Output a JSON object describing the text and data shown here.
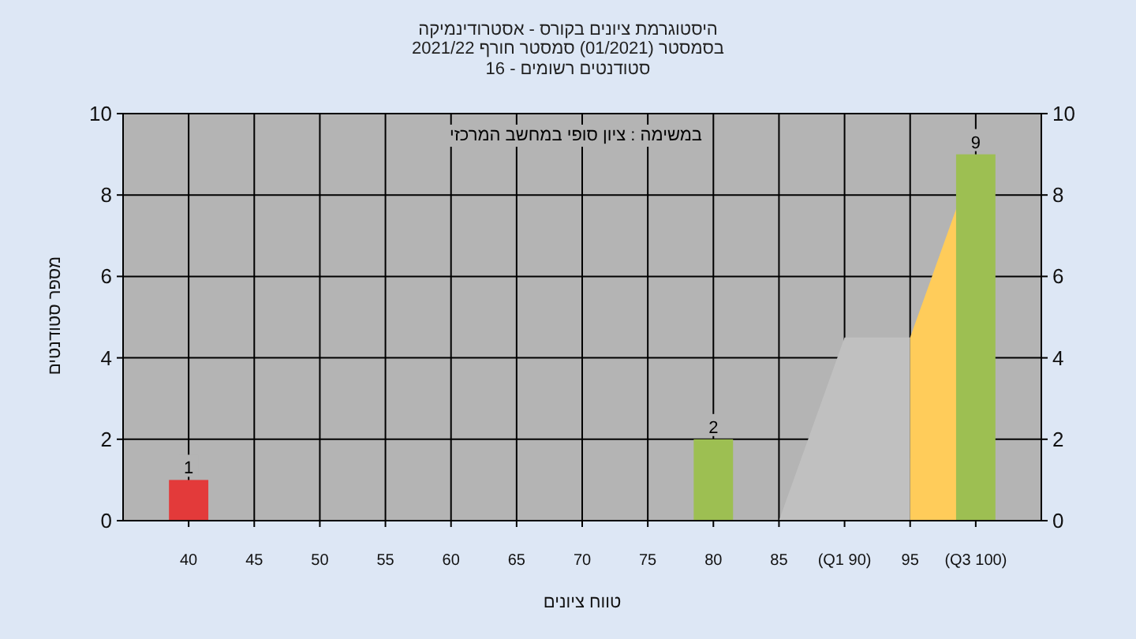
{
  "chart_data": {
    "type": "bar",
    "title": "היסטוגרמת ציונים בקורס - אסטרודינמיקה",
    "subtitle": "בסמסטר (01/2021) סמסטר חורף 2021/22",
    "annotations": [
      "סטודנטים רשומים - 16",
      "במשימה : ציון סופי במחשב המרכזי"
    ],
    "xlabel": "טווח ציונים",
    "ylabel": "מספר סטודנטים",
    "xlim": [
      35,
      105
    ],
    "xticks": [
      40,
      45,
      50,
      55,
      60,
      65,
      70,
      75,
      80,
      85,
      {
        "value": 90,
        "label": "(Q1 90)"
      },
      95,
      {
        "value": 100,
        "label": "(Q3 100)"
      }
    ],
    "ylim": [
      0,
      10
    ],
    "yticks": [
      0,
      2,
      4,
      6,
      8,
      10
    ],
    "y2lim": [
      0,
      10
    ],
    "y2ticks": [
      0,
      2,
      4,
      6,
      8,
      10
    ],
    "grid": true,
    "series": [
      {
        "type": "area",
        "color": "#c0c0c0",
        "x": [
          85,
          90,
          95
        ],
        "values": [
          0,
          4.5,
          4.5
        ]
      },
      {
        "type": "area",
        "color": "#ffcc5a",
        "x": [
          95,
          100
        ],
        "values": [
          4.5,
          9
        ]
      },
      {
        "x": [
          40,
          80,
          100
        ],
        "values": [
          1,
          2,
          9
        ],
        "value_labels": [
          "1",
          "2",
          "9"
        ],
        "colors": [
          "#e33a3a",
          "#9dbf52",
          "#9dbf52"
        ]
      }
    ]
  }
}
